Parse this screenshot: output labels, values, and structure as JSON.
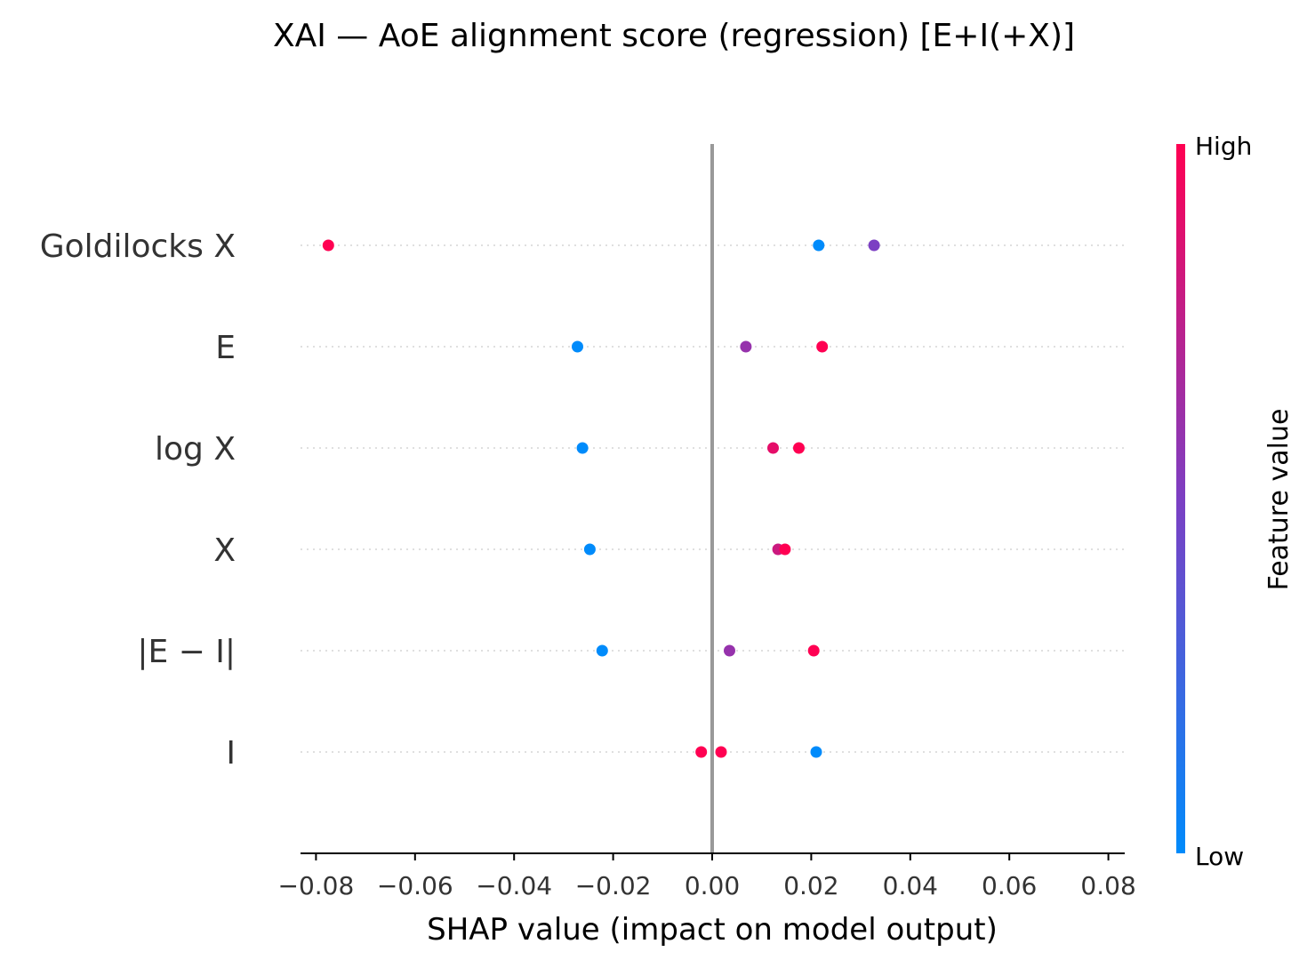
{
  "chart_data": {
    "type": "scatter",
    "subtype": "shap-beeswarm",
    "title": "XAI — AoE alignment score (regression) [E+I(+X)]",
    "xlabel": "SHAP value (impact on model output)",
    "xlim": [
      -0.083,
      0.083
    ],
    "xticks": [
      -0.08,
      -0.06,
      -0.04,
      -0.02,
      0.0,
      0.02,
      0.04,
      0.06,
      0.08
    ],
    "xtick_labels": [
      "−0.08",
      "−0.06",
      "−0.04",
      "−0.02",
      "0.00",
      "0.02",
      "0.04",
      "0.06",
      "0.08"
    ],
    "features": [
      {
        "name": "Goldilocks X",
        "points": [
          {
            "x": -0.0775,
            "level": 1.0
          },
          {
            "x": 0.0215,
            "level": 0.0
          },
          {
            "x": 0.0327,
            "level": 0.5
          }
        ]
      },
      {
        "name": "E",
        "points": [
          {
            "x": -0.0272,
            "level": 0.0
          },
          {
            "x": 0.0068,
            "level": 0.6
          },
          {
            "x": 0.0222,
            "level": 1.0
          }
        ]
      },
      {
        "name": "log X",
        "points": [
          {
            "x": -0.0262,
            "level": 0.0
          },
          {
            "x": 0.0123,
            "level": 0.9
          },
          {
            "x": 0.0175,
            "level": 1.0
          }
        ]
      },
      {
        "name": "X",
        "points": [
          {
            "x": -0.0247,
            "level": 0.0
          },
          {
            "x": 0.0133,
            "level": 0.8
          },
          {
            "x": 0.0147,
            "level": 1.0
          }
        ]
      },
      {
        "name": "|E − I|",
        "points": [
          {
            "x": -0.0222,
            "level": 0.0
          },
          {
            "x": 0.0035,
            "level": 0.6
          },
          {
            "x": 0.0205,
            "level": 1.0
          }
        ]
      },
      {
        "name": "I",
        "points": [
          {
            "x": -0.0022,
            "level": 1.0
          },
          {
            "x": 0.0018,
            "level": 1.0
          },
          {
            "x": 0.021,
            "level": 0.0
          }
        ]
      }
    ],
    "colorbar": {
      "title": "Feature value",
      "high_label": "High",
      "low_label": "Low",
      "low_color": "#008bfb",
      "mid_color": "#7c3fc3",
      "high_color": "#ff0052"
    },
    "zero_line_color": "#999999",
    "grid": false
  }
}
